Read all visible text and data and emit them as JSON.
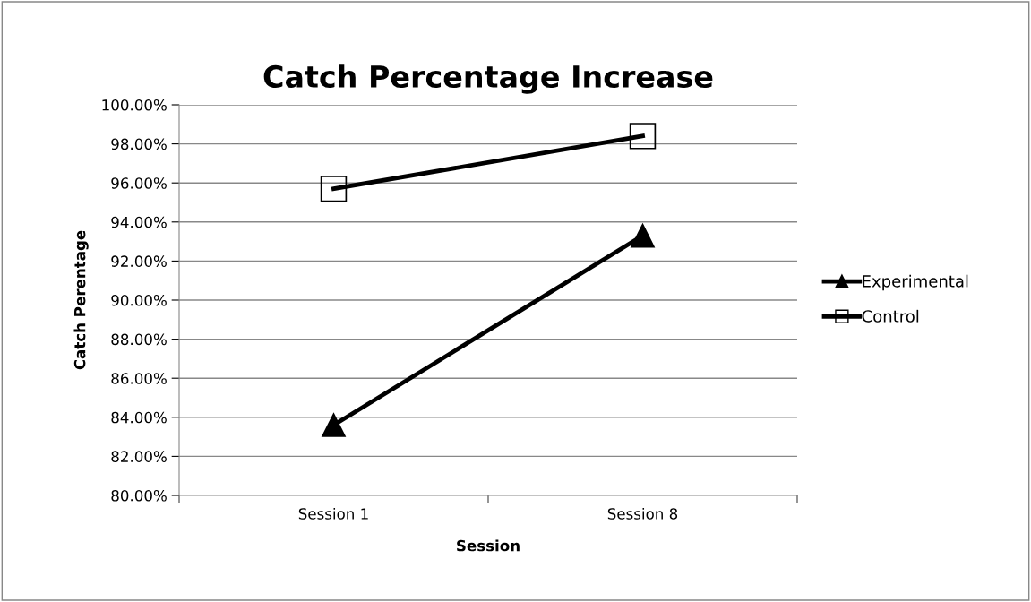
{
  "chart_data": {
    "type": "line",
    "title": "Catch Percentage Increase",
    "xlabel": "Session",
    "ylabel": "Catch Perentage",
    "categories": [
      "Session 1",
      "Session 8"
    ],
    "series": [
      {
        "name": "Experimental",
        "color": "#000000",
        "values": [
          83.6,
          93.3
        ],
        "marker": "triangle"
      },
      {
        "name": "Control",
        "color": "#000000",
        "values": [
          95.7,
          98.4
        ],
        "marker": "square"
      }
    ],
    "ylim": [
      80,
      100
    ],
    "yticks": [
      {
        "value": 80,
        "label": "80.00%"
      },
      {
        "value": 82,
        "label": "82.00%"
      },
      {
        "value": 84,
        "label": "84.00%"
      },
      {
        "value": 86,
        "label": "86.00%"
      },
      {
        "value": 88,
        "label": "88.00%"
      },
      {
        "value": 90,
        "label": "90.00%"
      },
      {
        "value": 92,
        "label": "92.00%"
      },
      {
        "value": 94,
        "label": "94.00%"
      },
      {
        "value": 96,
        "label": "96.00%"
      },
      {
        "value": 98,
        "label": "98.00%"
      },
      {
        "value": 100,
        "label": "100.00%"
      }
    ],
    "grid": "y",
    "legend": "right",
    "line_style": "solid"
  }
}
